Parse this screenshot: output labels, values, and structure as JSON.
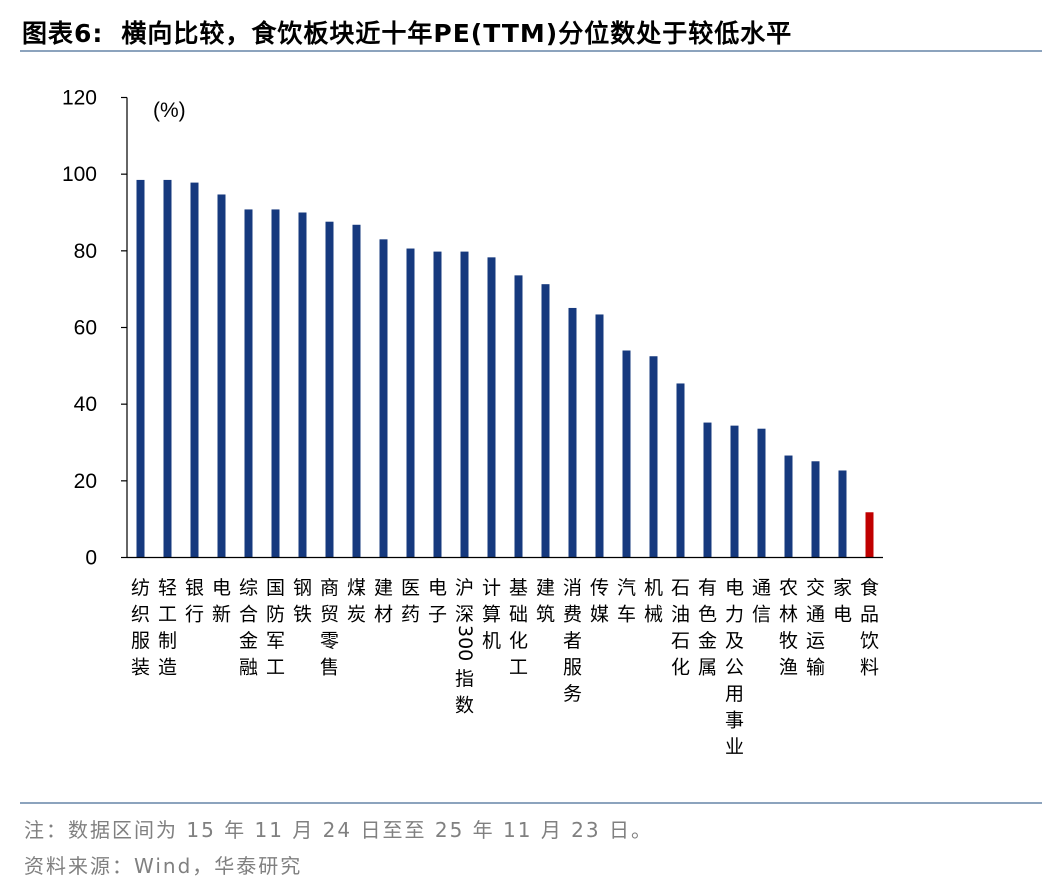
{
  "header": {
    "label": "图表6:",
    "title": "横向比较，食饮板块近十年PE(TTM)分位数处于较低水平"
  },
  "chart_data": {
    "type": "bar",
    "unit_label": "(%)",
    "ylim": [
      0,
      120
    ],
    "yticks": [
      0,
      20,
      40,
      60,
      80,
      100,
      120
    ],
    "grid": false,
    "legend": "none",
    "colors": {
      "default": "#16397e",
      "highlight": "#c00000",
      "axis": "#000000"
    },
    "highlight_category": "食品饮料",
    "categories": [
      "纺织服装",
      "轻工制造",
      "银行",
      "电新",
      "综合金融",
      "国防军工",
      "钢铁",
      "商贸零售",
      "煤炭",
      "建材",
      "医药",
      "电子",
      "沪深300指数",
      "计算机",
      "基础化工",
      "建筑",
      "消费者服务",
      "传媒",
      "汽车",
      "机械",
      "石油石化",
      "有色金属",
      "电力及公用事业",
      "通信",
      "农林牧渔",
      "交通运输",
      "家电",
      "食品饮料"
    ],
    "category_labels": [
      [
        "纺",
        "织",
        "服",
        "装"
      ],
      [
        "轻",
        "工",
        "制",
        "造"
      ],
      [
        "银",
        "行"
      ],
      [
        "电",
        "新"
      ],
      [
        "综",
        "合",
        "金",
        "融"
      ],
      [
        "国",
        "防",
        "军",
        "工"
      ],
      [
        "钢",
        "铁"
      ],
      [
        "商",
        "贸",
        "零",
        "售"
      ],
      [
        "煤",
        "炭"
      ],
      [
        "建",
        "材"
      ],
      [
        "医",
        "药"
      ],
      [
        "电",
        "子"
      ],
      [
        "沪",
        "深",
        "300",
        "指",
        "数"
      ],
      [
        "计",
        "算",
        "机"
      ],
      [
        "基",
        "础",
        "化",
        "工"
      ],
      [
        "建",
        "筑"
      ],
      [
        "消",
        "费",
        "者",
        "服",
        "务"
      ],
      [
        "传",
        "媒"
      ],
      [
        "汽",
        "车"
      ],
      [
        "机",
        "械"
      ],
      [
        "石",
        "油",
        "石",
        "化"
      ],
      [
        "有",
        "色",
        "金",
        "属"
      ],
      [
        "电",
        "力",
        "及",
        "公",
        "用",
        "事",
        "业"
      ],
      [
        "通",
        "信"
      ],
      [
        "农",
        "林",
        "牧",
        "渔"
      ],
      [
        "交",
        "通",
        "运",
        "输"
      ],
      [
        "家",
        "电"
      ],
      [
        "食",
        "品",
        "饮",
        "料"
      ]
    ],
    "values": [
      98.5,
      98.5,
      97.8,
      94.7,
      90.8,
      90.8,
      90.0,
      87.6,
      86.8,
      83.0,
      80.6,
      79.8,
      79.8,
      78.3,
      73.6,
      71.3,
      65.1,
      63.4,
      54.0,
      52.5,
      45.4,
      35.2,
      34.4,
      33.6,
      26.6,
      25.1,
      22.7,
      11.8
    ]
  },
  "footer": {
    "note": "注：数据区间为 15 年 11 月 24 日至至 25 年 11 月 23 日。",
    "source": "资料来源：Wind，华泰研究"
  }
}
